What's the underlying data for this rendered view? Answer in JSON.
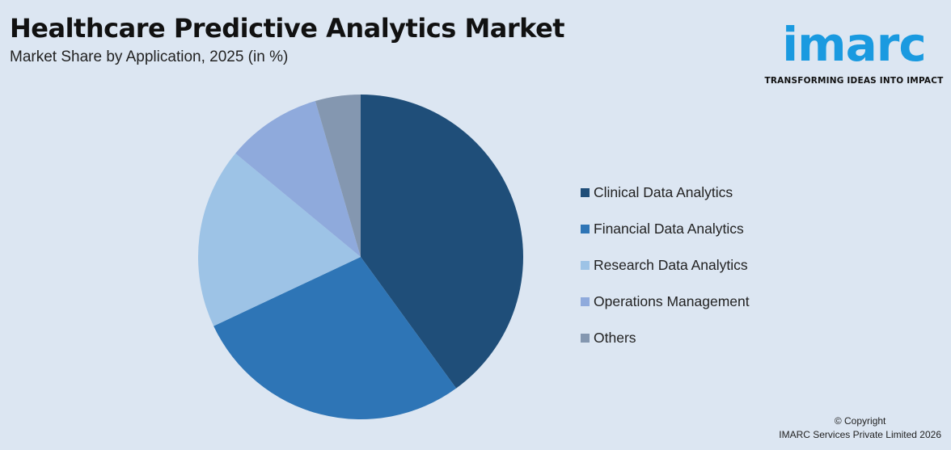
{
  "header": {
    "title": "Healthcare Predictive Analytics Market",
    "subtitle": "Market Share by Application, 2025 (in %)"
  },
  "logo": {
    "word": "imarc",
    "tagline": "TRANSFORMING IDEAS INTO IMPACT"
  },
  "chart_data": {
    "type": "pie",
    "title": "Healthcare Predictive Analytics Market",
    "subtitle": "Market Share by Application, 2025 (in %)",
    "legend_position": "right",
    "start_angle": "12 o'clock, clockwise",
    "categories": [
      "Clinical Data Analytics",
      "Financial Data Analytics",
      "Research Data Analytics",
      "Operations Management",
      "Others"
    ],
    "values": [
      40,
      28,
      18,
      9.5,
      4.5
    ],
    "colors": [
      "#1f4e79",
      "#2e75b6",
      "#9dc3e6",
      "#8faadc",
      "#8497b0"
    ]
  },
  "footer": {
    "copyright": "© Copyright",
    "company": "IMARC Services Private Limited 2026"
  }
}
